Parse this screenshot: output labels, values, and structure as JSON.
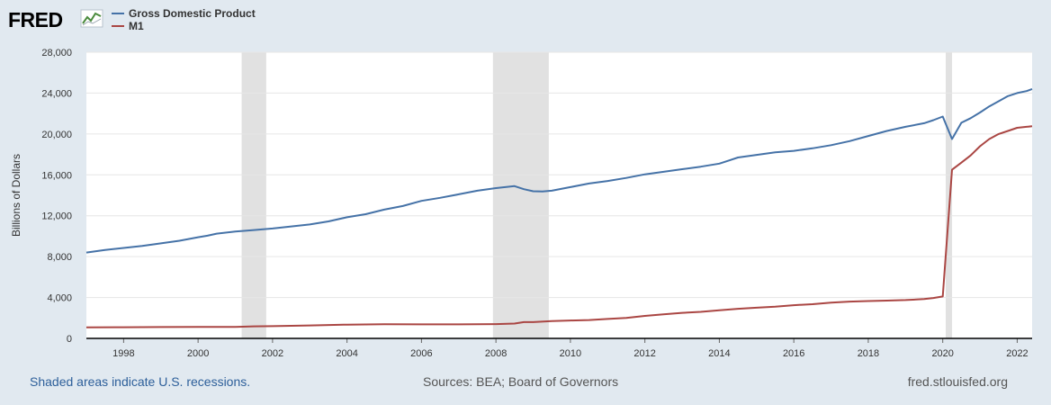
{
  "logo": {
    "text": "FRED"
  },
  "footer": {
    "note": "Shaded areas indicate U.S. recessions.",
    "sources": "Sources: BEA; Board of Governors",
    "site": "fred.stlouisfed.org"
  },
  "colors": {
    "gdp": "#4572a7",
    "m1": "#aa4643",
    "recession": "#e1e1e1",
    "plot_bg": "#ffffff",
    "page_bg": "#e1e9f0",
    "grid": "#e6e6e6"
  },
  "chart_data": {
    "type": "line",
    "title": "",
    "xlabel": "",
    "ylabel": "Billions of Dollars",
    "xlim": [
      1997.0,
      2022.4
    ],
    "ylim": [
      0,
      28000
    ],
    "y_ticks": [
      0,
      4000,
      8000,
      12000,
      16000,
      20000,
      24000,
      28000
    ],
    "y_tick_labels": [
      "0",
      "4,000",
      "8,000",
      "12,000",
      "16,000",
      "20,000",
      "24,000",
      "28,000"
    ],
    "x_ticks": [
      1998,
      2000,
      2002,
      2004,
      2006,
      2008,
      2010,
      2012,
      2014,
      2016,
      2018,
      2020,
      2022
    ],
    "x_tick_labels": [
      "1998",
      "2000",
      "2002",
      "2004",
      "2006",
      "2008",
      "2010",
      "2012",
      "2014",
      "2016",
      "2018",
      "2020",
      "2022"
    ],
    "legend_position": "top-left",
    "recessions": [
      [
        2001.17,
        2001.83
      ],
      [
        2007.92,
        2009.42
      ],
      [
        2020.08,
        2020.25
      ]
    ],
    "series": [
      {
        "name": "Gross Domestic Product",
        "color": "#4572a7",
        "x": [
          1997.0,
          1997.5,
          1998.0,
          1998.5,
          1999.0,
          1999.5,
          2000.0,
          2000.25,
          2000.5,
          2001.0,
          2001.5,
          2002.0,
          2002.5,
          2003.0,
          2003.5,
          2004.0,
          2004.5,
          2005.0,
          2005.5,
          2006.0,
          2006.5,
          2007.0,
          2007.5,
          2008.0,
          2008.25,
          2008.5,
          2008.75,
          2009.0,
          2009.25,
          2009.5,
          2010.0,
          2010.5,
          2011.0,
          2011.5,
          2012.0,
          2012.5,
          2013.0,
          2013.5,
          2014.0,
          2014.25,
          2014.5,
          2015.0,
          2015.5,
          2016.0,
          2016.5,
          2017.0,
          2017.5,
          2018.0,
          2018.5,
          2019.0,
          2019.5,
          2019.75,
          2020.0,
          2020.25,
          2020.5,
          2020.75,
          2021.0,
          2021.25,
          2021.5,
          2021.75,
          2022.0,
          2022.25,
          2022.4
        ],
        "values": [
          8400,
          8650,
          8850,
          9050,
          9300,
          9550,
          9900,
          10050,
          10250,
          10450,
          10600,
          10750,
          10950,
          11150,
          11450,
          11850,
          12150,
          12600,
          12950,
          13450,
          13750,
          14100,
          14450,
          14700,
          14800,
          14900,
          14600,
          14400,
          14380,
          14450,
          14800,
          15150,
          15400,
          15700,
          16050,
          16300,
          16550,
          16800,
          17100,
          17400,
          17700,
          17950,
          18200,
          18350,
          18600,
          18900,
          19300,
          19800,
          20300,
          20700,
          21050,
          21350,
          21700,
          19500,
          21100,
          21550,
          22100,
          22700,
          23200,
          23700,
          24000,
          24200,
          24400
        ]
      },
      {
        "name": "M1",
        "color": "#aa4643",
        "x": [
          1997.0,
          1998.0,
          1999.0,
          2000.0,
          2001.0,
          2001.5,
          2002.0,
          2003.0,
          2004.0,
          2005.0,
          2006.0,
          2007.0,
          2008.0,
          2008.5,
          2008.75,
          2009.0,
          2009.5,
          2010.0,
          2010.5,
          2011.0,
          2011.5,
          2012.0,
          2012.5,
          2013.0,
          2013.5,
          2014.0,
          2014.5,
          2015.0,
          2015.5,
          2016.0,
          2016.5,
          2017.0,
          2017.5,
          2018.0,
          2018.5,
          2019.0,
          2019.5,
          2019.75,
          2020.0,
          2020.25,
          2020.5,
          2020.75,
          2021.0,
          2021.25,
          2021.5,
          2021.75,
          2022.0,
          2022.25,
          2022.4
        ],
        "values": [
          1080,
          1090,
          1110,
          1120,
          1120,
          1180,
          1200,
          1270,
          1350,
          1380,
          1370,
          1370,
          1400,
          1450,
          1590,
          1590,
          1700,
          1750,
          1800,
          1900,
          2000,
          2200,
          2350,
          2500,
          2600,
          2750,
          2900,
          3000,
          3100,
          3250,
          3350,
          3500,
          3600,
          3650,
          3700,
          3750,
          3850,
          3950,
          4100,
          16500,
          17200,
          17900,
          18800,
          19500,
          20000,
          20300,
          20600,
          20700,
          20750
        ]
      }
    ]
  }
}
